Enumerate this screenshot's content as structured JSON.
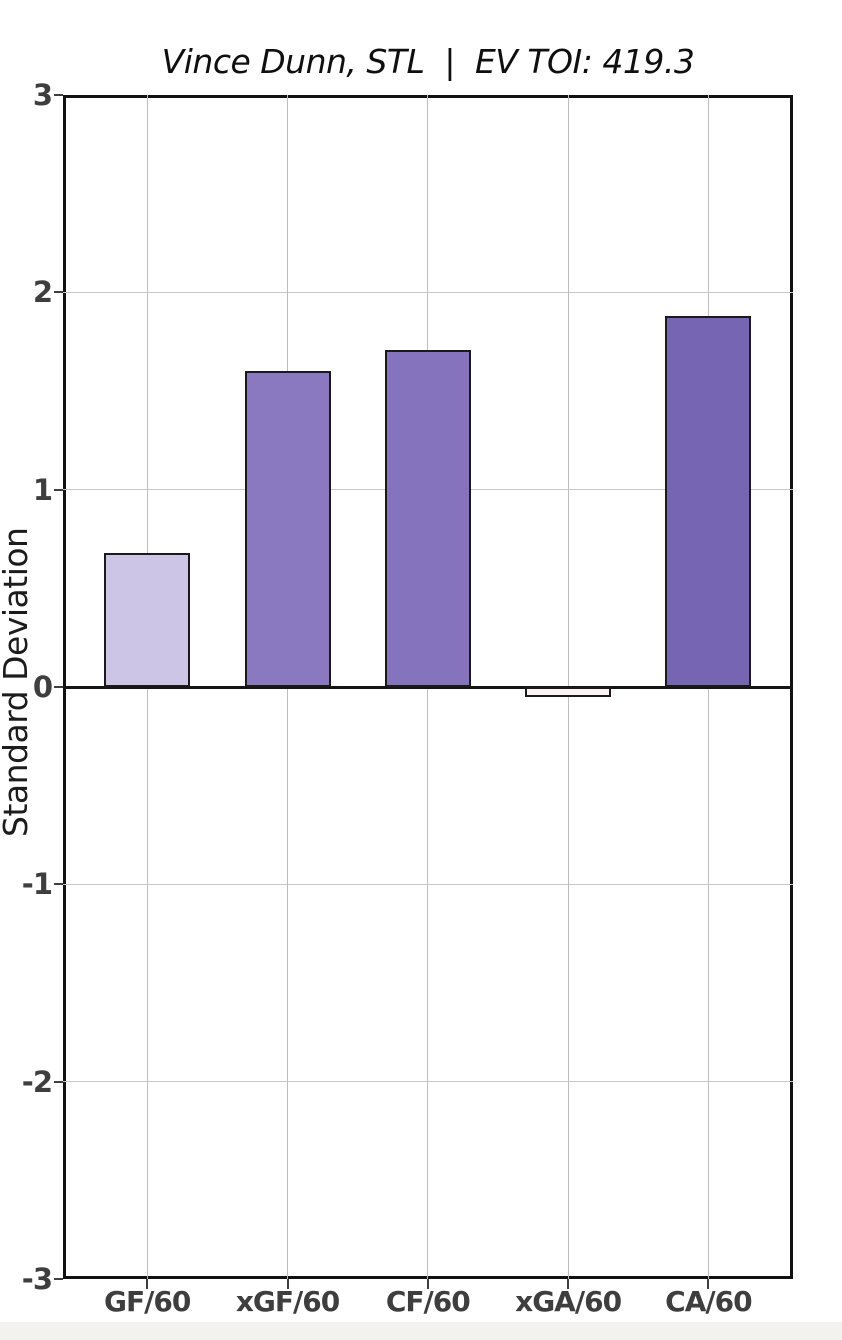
{
  "chart_data": {
    "type": "bar",
    "title": "Vince Dunn, STL  |  EV TOI: 419.3",
    "player": "Vince Dunn",
    "team": "STL",
    "ev_toi": "419.3",
    "ylabel": "Standard Deviation",
    "categories": [
      "GF/60",
      "xGF/60",
      "CF/60",
      "xGA/60",
      "CA/60"
    ],
    "values": [
      0.68,
      1.6,
      1.71,
      -0.05,
      1.88
    ],
    "bar_colors": [
      "#cdc5e5",
      "#8a79c1",
      "#8673be",
      "#faf5f4",
      "#7565b3"
    ],
    "bar_edge_color": "#1a1a1a",
    "ylim": [
      -3,
      3
    ],
    "yticks": [
      3,
      2,
      1,
      0,
      -1,
      -2,
      -3
    ],
    "grid": true,
    "legend": "none",
    "background_color": "#ffffff",
    "tick_label_color": "#3e3e3e",
    "gridline_color": "#c8c8c8",
    "zero_line_color": "#151515"
  }
}
